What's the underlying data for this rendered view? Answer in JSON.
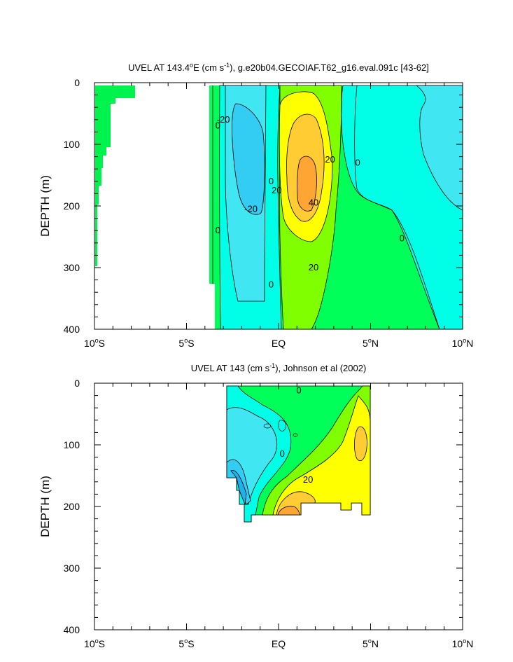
{
  "chart_data": [
    {
      "type": "heatmap",
      "subtype": "filled-contour",
      "title": "UVEL AT 143.4°E (cm s⁻¹), g.e20b04.GECOIAF.T62_g16.eval.091c [43-62]",
      "title_parts": {
        "pre": "UVEL AT 143.4",
        "deg": "o",
        "mid": "E (cm s",
        "exp": "-1",
        "post": "), g.e20b04.GECOIAF.T62_g16.eval.091c [43-62]"
      },
      "xlabel": "",
      "ylabel": "DEPTH (m)",
      "xlim": [
        -10,
        10
      ],
      "ylim": [
        400,
        0
      ],
      "x_ticks": [
        {
          "value": -10,
          "label": "10",
          "deg": "o",
          "suffix": "S"
        },
        {
          "value": -5,
          "label": "5",
          "deg": "o",
          "suffix": "S"
        },
        {
          "value": 0,
          "label": "EQ",
          "deg": "",
          "suffix": ""
        },
        {
          "value": 5,
          "label": "5",
          "deg": "o",
          "suffix": "N"
        },
        {
          "value": 10,
          "label": "10",
          "deg": "o",
          "suffix": "N"
        }
      ],
      "y_ticks": [
        0,
        100,
        200,
        300,
        400
      ],
      "contour_labels": [
        {
          "text": "-20",
          "x": -3.0,
          "y": 60
        },
        {
          "text": "0",
          "x": -3.3,
          "y": 70
        },
        {
          "text": "0",
          "x": -0.4,
          "y": 160
        },
        {
          "text": "20",
          "x": -0.1,
          "y": 175
        },
        {
          "text": "-20",
          "x": -1.5,
          "y": 205
        },
        {
          "text": "0",
          "x": -3.3,
          "y": 240
        },
        {
          "text": "40",
          "x": 1.9,
          "y": 195
        },
        {
          "text": "20",
          "x": 2.8,
          "y": 125
        },
        {
          "text": "0",
          "x": 4.3,
          "y": 130
        },
        {
          "text": "20",
          "x": 1.9,
          "y": 300
        },
        {
          "text": "0",
          "x": -0.4,
          "y": 328
        },
        {
          "text": "0",
          "x": 6.7,
          "y": 253
        }
      ]
    },
    {
      "type": "heatmap",
      "subtype": "filled-contour",
      "title": "UVEL AT 143 (cm s⁻¹), Johnson et al (2002)",
      "title_parts": {
        "pre": "UVEL AT 143 (cm s",
        "deg": "",
        "mid": "",
        "exp": "-1",
        "post": "), Johnson et al (2002)"
      },
      "xlabel": "",
      "ylabel": "DEPTH (m)",
      "xlim": [
        -10,
        10
      ],
      "ylim": [
        400,
        0
      ],
      "x_ticks": [
        {
          "value": -10,
          "label": "10",
          "deg": "o",
          "suffix": "S"
        },
        {
          "value": -5,
          "label": "5",
          "deg": "o",
          "suffix": "S"
        },
        {
          "value": 0,
          "label": "EQ",
          "deg": "",
          "suffix": ""
        },
        {
          "value": 5,
          "label": "5",
          "deg": "o",
          "suffix": "N"
        },
        {
          "value": 10,
          "label": "10",
          "deg": "o",
          "suffix": "N"
        }
      ],
      "y_ticks": [
        0,
        100,
        200,
        300,
        400
      ],
      "contour_labels": [
        {
          "text": "0",
          "x": 1.1,
          "y": 12
        },
        {
          "text": "0",
          "x": 0.2,
          "y": 115
        },
        {
          "text": "20",
          "x": 1.6,
          "y": 157
        }
      ]
    }
  ],
  "colors": {
    "level_-40": "#1ab3f0",
    "level_-30": "#33ccf2",
    "level_-20": "#40e6f2",
    "level_-10": "#00ffe6",
    "level_0": "#00ff59",
    "level_10": "#80ff00",
    "level_20": "#ffff00",
    "level_30": "#ffcc33",
    "level_40": "#ffa533",
    "contour_line": "#000000",
    "land": "#00f24d"
  }
}
